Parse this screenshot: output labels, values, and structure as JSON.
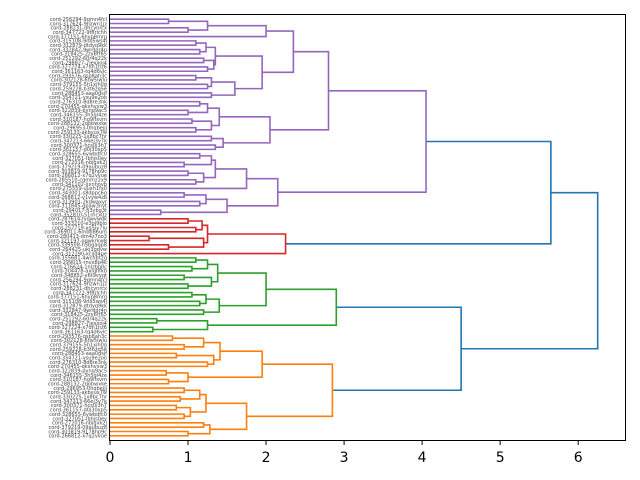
{
  "_note": "Coarse cluster structure and top-level merge heights are read from the image. Leaf labels are placeholders (real labels unreadable), leaf count (~106) is a spacing estimate, and low-level merges are generated.",
  "chart_data": {
    "type": "dendrogram",
    "orientation": "right",
    "title": "",
    "xlabel": "",
    "ylabel": "",
    "xlim": [
      0,
      6.6
    ],
    "x_ticks": [
      0,
      1,
      2,
      3,
      4,
      5,
      6
    ],
    "x_tick_labels": [
      "0",
      "1",
      "2",
      "3",
      "4",
      "5",
      "6"
    ],
    "grid": false,
    "link_colors": {
      "above_threshold": "#1f77b4",
      "cluster_purple": "#9467bd",
      "cluster_red": "#d62728",
      "cluster_green": "#2ca02c",
      "cluster_orange": "#ff7f0e"
    },
    "tree": {
      "h": 6.25,
      "c": "above_threshold",
      "children": [
        {
          "h": 5.65,
          "c": "above_threshold",
          "children": [
            {
              "h": 4.05,
              "c": "cluster_purple",
              "children": [
                {
                  "h": 2.8,
                  "c": "cluster_purple",
                  "children": [
                    {
                      "h": 2.35,
                      "c": "cluster_purple",
                      "children": [
                        {
                          "h": 2.0,
                          "c": "cluster_purple",
                          "n": 5,
                          "sub": [
                            1.55,
                            1.25,
                            1.0,
                            0.75
                          ]
                        },
                        {
                          "h": 1.95,
                          "c": "cluster_purple",
                          "n": 14,
                          "sub": [
                            1.8,
                            1.6,
                            1.35,
                            1.3,
                            1.2,
                            1.15,
                            1.3,
                            1.25,
                            1.1,
                            1.25,
                            1.2,
                            1.15,
                            1.1
                          ]
                        }
                      ]
                    },
                    {
                      "h": 2.05,
                      "c": "cluster_purple",
                      "n": 12,
                      "sub": [
                        1.8,
                        1.6,
                        1.4,
                        1.45,
                        1.3,
                        1.25,
                        1.35,
                        1.3,
                        1.1,
                        1.05,
                        1.0,
                        1.15
                      ]
                    }
                  ]
                },
                {
                  "h": 2.15,
                  "c": "cluster_purple",
                  "children": [
                    {
                      "h": 1.75,
                      "c": "cluster_purple",
                      "n": 9,
                      "sub": [
                        1.5,
                        1.35,
                        1.2,
                        1.3,
                        1.1,
                        1.0,
                        0.95,
                        1.15
                      ]
                    },
                    {
                      "h": 1.5,
                      "c": "cluster_purple",
                      "n": 6,
                      "sub": [
                        1.2,
                        0.9,
                        0.65,
                        1.15,
                        0.95
                      ]
                    }
                  ]
                }
              ]
            },
            {
              "h": 2.25,
              "c": "cluster_red",
              "n": 9,
              "sub": [
                1.55,
                1.25,
                1.2,
                0.9,
                0.75,
                0.5,
                1.1,
                1.0
              ]
            }
          ]
        },
        {
          "h": 4.5,
          "c": "above_threshold",
          "children": [
            {
              "h": 2.9,
              "c": "cluster_green",
              "children": [
                {
                  "h": 2.0,
                  "c": "cluster_green",
                  "n": 14,
                  "sub": [
                    1.5,
                    1.4,
                    1.1,
                    1.0,
                    1.3,
                    1.25,
                    1.2,
                    1.15,
                    1.05,
                    1.0,
                    0.95,
                    1.05,
                    1.1
                  ]
                },
                {
                  "h": 1.25,
                  "c": "cluster_green",
                  "n": 4,
                  "sub": [
                    0.95,
                    0.55,
                    0.6
                  ]
                }
              ]
            },
            {
              "h": 2.85,
              "c": "cluster_orange",
              "children": [
                {
                  "h": 1.95,
                  "c": "cluster_orange",
                  "n": 12,
                  "sub": [
                    1.45,
                    1.15,
                    1.0,
                    0.9,
                    1.2,
                    0.75,
                    0.72,
                    1.25,
                    0.85,
                    0.95,
                    0.8
                  ]
                },
                {
                  "h": 1.75,
                  "c": "cluster_orange",
                  "n": 12,
                  "sub": [
                    1.4,
                    1.1,
                    1.05,
                    0.95,
                    1.15,
                    1.0,
                    1.2,
                    0.95,
                    0.85,
                    0.9,
                    0.95
                  ]
                }
              ]
            }
          ]
        }
      ]
    },
    "leaf_label_prefix": "cord-",
    "leaf_label_pool": [
      "256294-9qmn4fcl",
      "317624-9hzwn1jz",
      "288231-dhcynrcx",
      "347722-9f8rlchh",
      "377151-6hyp8mrg",
      "315108-9nb5ws4j",
      "312879-dtdyq9kk",
      "332847-9wrdgr4n",
      "318425-2zy6rf65",
      "251292-60r4q22k",
      "298827-7jexxoj4",
      "327224-x7dh1hz6",
      "361163-tq4d6vlc",
      "293576-qsp8ah3c",
      "302128-6tw5iwlu",
      "379155-5h1xjh0g",
      "259228-b3t6zq5e",
      "288453-aaa0dsjf",
      "354721-ysu9e2oo",
      "276310-8d8re3nk",
      "270455-qkxhvxw3",
      "322839-pynq9ac5",
      "346155-3h5gl4ze",
      "310187-hg9ifxvm",
      "288132-2qobwxke",
      "296953-0hqbejjj",
      "259133-akbyux7w",
      "330225-1x8bc7hr",
      "347213-66ej3v7k",
      "300371-hcs0i3h7",
      "361157-d0j30xp5",
      "328655-6ywbdfc0",
      "327051-lbhjs0ey",
      "272016-nbjgxk2j",
      "379219-09aubuz8",
      "303819-9178hp9c",
      "266812-x7q2vvue",
      "285510-cqmmz2x9",
      "341102-jjxnhovb",
      "275559-uuxh1fx0",
      "343001-s8dppc6g",
      "268812-v1vyw4zb",
      "313901-2kdwaxyr",
      "311845-qpaw3nyt",
      "294017-fj3ybg3t",
      "352810-51rncx0z",
      "287614-fyqwvwdk",
      "333210-e3pj9blo",
      "257719-xg5iy7lu",
      "369011-6mbb86um",
      "280413-dm4z7oo3",
      "321197-oqwkrkw8",
      "339508-h5bqaqp8",
      "264425-ukj3gdvw",
      "312290-kcijd4pe",
      "355681-4wcnbt2g",
      "299015-rnvx8p4k",
      "276624-1nlzbp0c",
      "304478-axlqhfkb",
      "348852-v6t9vyqt"
    ]
  }
}
